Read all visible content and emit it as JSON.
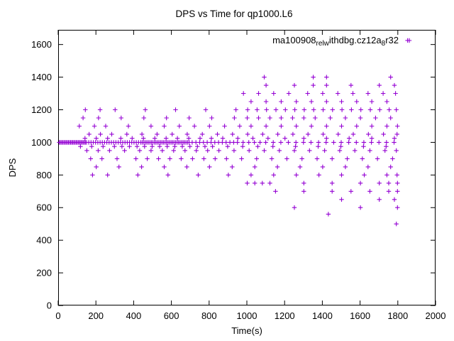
{
  "chart_data": {
    "type": "scatter",
    "title": "DPS vs Time for qp1000.L6",
    "xlabel": "Time(s)",
    "ylabel": "DPS",
    "xlim": [
      0,
      2000
    ],
    "ylim": [
      0,
      1690
    ],
    "xticks": [
      0,
      200,
      400,
      600,
      800,
      1000,
      1200,
      1400,
      1600,
      1800,
      2000
    ],
    "yticks": [
      0,
      200,
      400,
      600,
      800,
      1000,
      1200,
      1400,
      1600
    ],
    "grid": false,
    "marker": "plus",
    "marker_color": "#9400D3",
    "legend_position": "top-right-inside",
    "legend": {
      "plain": "ma100908_rel_withdbg.cz12a_8r32",
      "segments": [
        {
          "text": "ma100908",
          "sub": false
        },
        {
          "text": "rel",
          "sub": true
        },
        {
          "text": "w",
          "sub": true
        },
        {
          "text": "ithdbg.cz12a",
          "sub": false
        },
        {
          "text": "8",
          "sub": true
        },
        {
          "text": "r32",
          "sub": false
        }
      ]
    },
    "bands": [
      {
        "y": 1000,
        "x": [
          6,
          12,
          18,
          24,
          30,
          36,
          42,
          48,
          54,
          60,
          66,
          72,
          78,
          84,
          90,
          96,
          102,
          108,
          114,
          120,
          126,
          132,
          138,
          144,
          150,
          162,
          174,
          186,
          198,
          210,
          222,
          234,
          246,
          258,
          270,
          282,
          294,
          306,
          318,
          330,
          342,
          354,
          366,
          378,
          390,
          402,
          414,
          426,
          438,
          446,
          454,
          462,
          470,
          478,
          486,
          494,
          502,
          510,
          518,
          526,
          534,
          542,
          550,
          558,
          566,
          574,
          582,
          590,
          598,
          606,
          614,
          622,
          630,
          638,
          646,
          654,
          662,
          670,
          678,
          686,
          694,
          710,
          730,
          750,
          770,
          790,
          810,
          830,
          850,
          870,
          890,
          910,
          930,
          950,
          980,
          1010,
          1040,
          1070,
          1100,
          1140,
          1180,
          1220,
          1260,
          1300,
          1340,
          1380,
          1420,
          1460,
          1500,
          1540,
          1580,
          1620,
          1660,
          1700,
          1740,
          1780
        ]
      },
      {
        "y": 975,
        "x": [
          118,
          178,
          238,
          298,
          338,
          378,
          418,
          458,
          498,
          538,
          578,
          618,
          658,
          698,
          738,
          778,
          818,
          898,
          978,
          1058,
          1138,
          1258,
          1378,
          1498,
          1618,
          1738
        ]
      },
      {
        "y": 1025,
        "x": [
          142,
          202,
          262,
          332,
          392,
          452,
          512,
          572,
          632,
          692,
          752,
          812,
          872,
          952,
          1032,
          1112,
          1202,
          1302,
          1422,
          1542,
          1662,
          1782
        ]
      },
      {
        "y": 950,
        "x": [
          152,
          212,
          272,
          352,
          432,
          492,
          552,
          612,
          672,
          732,
          792,
          852,
          932,
          1012,
          1092,
          1172,
          1252,
          1332,
          1412,
          1492,
          1572,
          1652,
          1732,
          1792
        ]
      },
      {
        "y": 1050,
        "x": [
          164,
          224,
          284,
          364,
          444,
          524,
          604,
          684,
          764,
          844,
          924,
          1004,
          1084,
          1164,
          1244,
          1324,
          1404,
          1484,
          1564,
          1644,
          1724,
          1796
        ]
      },
      {
        "y": 900,
        "x": [
          172,
          232,
          312,
          412,
          472,
          532,
          592,
          652,
          712,
          772,
          832,
          892,
          972,
          1052,
          1132,
          1212,
          1292,
          1372,
          1452,
          1532,
          1612,
          1692,
          1772
        ]
      },
      {
        "y": 1100,
        "x": [
          112,
          192,
          252,
          372,
          492,
          562,
          642,
          722,
          802,
          882,
          962,
          1022,
          1102,
          1182,
          1262,
          1342,
          1422,
          1502,
          1582,
          1662,
          1742,
          1798
        ]
      },
      {
        "y": 1150,
        "x": [
          132,
          214,
          334,
          454,
          574,
          694,
          814,
          934,
          1002,
          1062,
          1122,
          1182,
          1242,
          1302,
          1362,
          1442,
          1522,
          1602,
          1682,
          1762
        ]
      },
      {
        "y": 1200,
        "x": [
          144,
          222,
          302,
          462,
          622,
          782,
          942,
          1004,
          1054,
          1104,
          1154,
          1204,
          1254,
          1304,
          1354,
          1404,
          1454,
          1504,
          1554,
          1604,
          1654,
          1704,
          1754,
          1792
        ]
      },
      {
        "y": 850,
        "x": [
          202,
          322,
          442,
          562,
          682,
          802,
          922,
          1042,
          1162,
          1282,
          1402,
          1522,
          1642,
          1762
        ]
      },
      {
        "y": 800,
        "x": [
          182,
          262,
          422,
          582,
          742,
          902,
          1022,
          1142,
          1262,
          1382,
          1502,
          1622,
          1742,
          1796
        ]
      },
      {
        "y": 750,
        "x": [
          1002,
          1042,
          1082,
          1122,
          1302,
          1452,
          1602,
          1702,
          1752,
          1798
        ]
      },
      {
        "y": 1250,
        "x": [
          1022,
          1102,
          1182,
          1262,
          1342,
          1422,
          1502,
          1582,
          1662,
          1742
        ]
      },
      {
        "y": 1300,
        "x": [
          982,
          1062,
          1142,
          1222,
          1322,
          1402,
          1482,
          1562,
          1642,
          1722,
          1788
        ]
      },
      {
        "y": 1350,
        "x": [
          1102,
          1252,
          1352,
          1422,
          1552,
          1702,
          1782
        ]
      },
      {
        "y": 1400,
        "x": [
          1092,
          1352,
          1422,
          1762
        ]
      },
      {
        "y": 700,
        "x": [
          1152,
          1302,
          1452,
          1552,
          1652,
          1752,
          1798
        ]
      },
      {
        "y": 650,
        "x": [
          1502,
          1702,
          1782
        ]
      },
      {
        "y": 600,
        "x": [
          1252,
          1602,
          1798
        ]
      },
      {
        "y": 560,
        "x": [
          1432
        ]
      },
      {
        "y": 500,
        "x": [
          1792
        ]
      },
      {
        "y": 1625,
        "x": [
          1852
        ]
      }
    ]
  }
}
